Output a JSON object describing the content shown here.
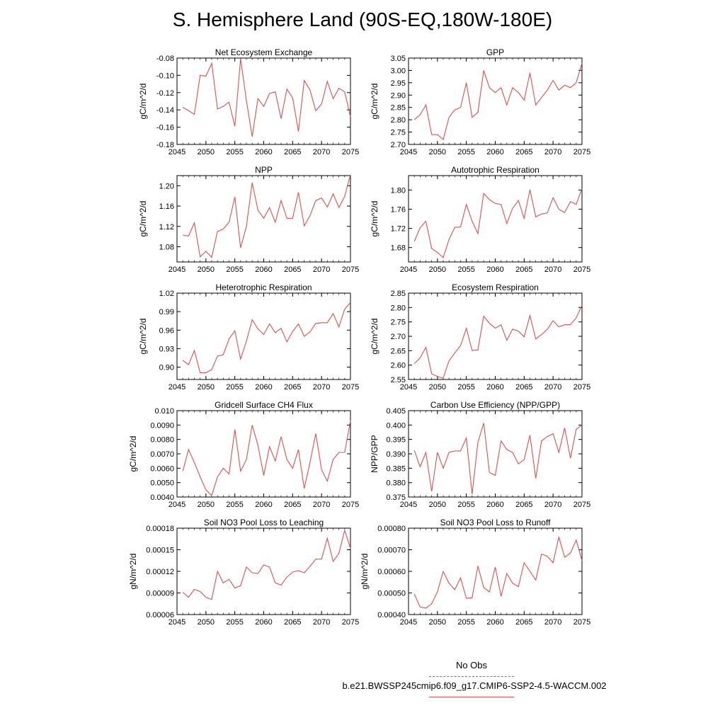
{
  "title": "S. Hemisphere Land (90S-EQ,180W-180E)",
  "legend": {
    "obs_label": "No Obs",
    "model_label": "b.e21.BWSSP245cmip6.f09_g17.CMIP6-SSP2-4.5-WACCM.002",
    "obs_color": "#6a6ad0",
    "model_color": "#e05050"
  },
  "chart_data": [
    {
      "type": "line",
      "title": "Net Ecosystem Exchange",
      "xlabel": "",
      "ylabel": "gC/m^2/d",
      "xlim": [
        2045,
        2075
      ],
      "ylim": [
        -0.18,
        -0.08
      ],
      "xticks": [
        2045,
        2050,
        2055,
        2060,
        2065,
        2070,
        2075
      ],
      "yticks": [
        -0.18,
        -0.16,
        -0.14,
        -0.12,
        -0.1,
        -0.08
      ],
      "ytick_labels": [
        "-0.18",
        "-0.16",
        "-0.14",
        "-0.12",
        "-0.10",
        "-0.08"
      ],
      "x": [
        2046,
        2047,
        2048,
        2049,
        2050,
        2051,
        2052,
        2053,
        2054,
        2055,
        2056,
        2057,
        2058,
        2059,
        2060,
        2061,
        2062,
        2063,
        2064,
        2065,
        2066,
        2067,
        2068,
        2069,
        2070,
        2071,
        2072,
        2073,
        2074,
        2075
      ],
      "series": [
        {
          "values": [
            -0.137,
            -0.141,
            -0.145,
            -0.1,
            -0.101,
            -0.086,
            -0.139,
            -0.136,
            -0.131,
            -0.159,
            -0.081,
            -0.129,
            -0.171,
            -0.127,
            -0.136,
            -0.121,
            -0.119,
            -0.15,
            -0.116,
            -0.126,
            -0.165,
            -0.106,
            -0.117,
            -0.141,
            -0.133,
            -0.107,
            -0.127,
            -0.115,
            -0.119,
            -0.148
          ]
        }
      ]
    },
    {
      "type": "line",
      "title": "GPP",
      "xlabel": "",
      "ylabel": "gC/m^2/d",
      "xlim": [
        2045,
        2075
      ],
      "ylim": [
        2.7,
        3.05
      ],
      "xticks": [
        2045,
        2050,
        2055,
        2060,
        2065,
        2070,
        2075
      ],
      "yticks": [
        2.7,
        2.75,
        2.8,
        2.85,
        2.9,
        2.95,
        3.0,
        3.05
      ],
      "ytick_labels": [
        "2.70",
        "2.75",
        "2.80",
        "2.85",
        "2.90",
        "2.95",
        "3.00",
        "3.05"
      ],
      "x": [
        2046,
        2047,
        2048,
        2049,
        2050,
        2051,
        2052,
        2053,
        2054,
        2055,
        2056,
        2057,
        2058,
        2059,
        2060,
        2061,
        2062,
        2063,
        2064,
        2065,
        2066,
        2067,
        2068,
        2069,
        2070,
        2071,
        2072,
        2073,
        2074,
        2075
      ],
      "series": [
        {
          "values": [
            2.8,
            2.82,
            2.86,
            2.74,
            2.74,
            2.72,
            2.81,
            2.84,
            2.85,
            2.95,
            2.81,
            2.83,
            3.0,
            2.93,
            2.91,
            2.93,
            2.86,
            2.93,
            2.91,
            2.88,
            2.99,
            2.86,
            2.89,
            2.92,
            2.96,
            2.92,
            2.94,
            2.93,
            2.95,
            3.03
          ]
        }
      ]
    },
    {
      "type": "line",
      "title": "NPP",
      "xlabel": "",
      "ylabel": "gC/m^2/d",
      "xlim": [
        2045,
        2075
      ],
      "ylim": [
        1.05,
        1.22
      ],
      "xticks": [
        2045,
        2050,
        2055,
        2060,
        2065,
        2070,
        2075
      ],
      "yticks": [
        1.08,
        1.12,
        1.16,
        1.2
      ],
      "ytick_labels": [
        "1.08",
        "1.12",
        "1.16",
        "1.20"
      ],
      "x": [
        2046,
        2047,
        2048,
        2049,
        2050,
        2051,
        2052,
        2053,
        2054,
        2055,
        2056,
        2057,
        2058,
        2059,
        2060,
        2061,
        2062,
        2063,
        2064,
        2065,
        2066,
        2067,
        2068,
        2069,
        2070,
        2071,
        2072,
        2073,
        2074,
        2075
      ],
      "series": [
        {
          "values": [
            1.103,
            1.101,
            1.127,
            1.06,
            1.071,
            1.059,
            1.11,
            1.115,
            1.128,
            1.178,
            1.078,
            1.12,
            1.206,
            1.152,
            1.136,
            1.157,
            1.128,
            1.171,
            1.136,
            1.136,
            1.187,
            1.121,
            1.141,
            1.171,
            1.176,
            1.158,
            1.184,
            1.157,
            1.179,
            1.222
          ]
        }
      ]
    },
    {
      "type": "line",
      "title": "Autotrophic Respiration",
      "xlabel": "",
      "ylabel": "gC/m^2/d",
      "xlim": [
        2045,
        2075
      ],
      "ylim": [
        1.65,
        1.83
      ],
      "xticks": [
        2045,
        2050,
        2055,
        2060,
        2065,
        2070,
        2075
      ],
      "yticks": [
        1.68,
        1.72,
        1.76,
        1.8
      ],
      "ytick_labels": [
        "1.68",
        "1.72",
        "1.76",
        "1.80"
      ],
      "x": [
        2046,
        2047,
        2048,
        2049,
        2050,
        2051,
        2052,
        2053,
        2054,
        2055,
        2056,
        2057,
        2058,
        2059,
        2060,
        2061,
        2062,
        2063,
        2064,
        2065,
        2066,
        2067,
        2068,
        2069,
        2070,
        2071,
        2072,
        2073,
        2074,
        2075
      ],
      "series": [
        {
          "values": [
            1.693,
            1.721,
            1.735,
            1.678,
            1.67,
            1.659,
            1.697,
            1.722,
            1.723,
            1.77,
            1.735,
            1.709,
            1.793,
            1.78,
            1.772,
            1.77,
            1.73,
            1.762,
            1.778,
            1.741,
            1.801,
            1.744,
            1.75,
            1.752,
            1.784,
            1.76,
            1.753,
            1.776,
            1.77,
            1.803
          ]
        }
      ]
    },
    {
      "type": "line",
      "title": "Heterotrophic Respiration",
      "xlabel": "",
      "ylabel": "gC/m^2/d",
      "xlim": [
        2045,
        2075
      ],
      "ylim": [
        0.88,
        1.02
      ],
      "xticks": [
        2045,
        2050,
        2055,
        2060,
        2065,
        2070,
        2075
      ],
      "yticks": [
        0.9,
        0.93,
        0.96,
        0.99,
        1.02
      ],
      "ytick_labels": [
        "0.90",
        "0.93",
        "0.96",
        "0.99",
        "1.02"
      ],
      "x": [
        2046,
        2047,
        2048,
        2049,
        2050,
        2051,
        2052,
        2053,
        2054,
        2055,
        2056,
        2057,
        2058,
        2059,
        2060,
        2061,
        2062,
        2063,
        2064,
        2065,
        2066,
        2067,
        2068,
        2069,
        2070,
        2071,
        2072,
        2073,
        2074,
        2075
      ],
      "series": [
        {
          "values": [
            0.911,
            0.904,
            0.927,
            0.891,
            0.891,
            0.896,
            0.918,
            0.92,
            0.946,
            0.959,
            0.913,
            0.942,
            0.977,
            0.962,
            0.953,
            0.97,
            0.956,
            0.963,
            0.941,
            0.958,
            0.97,
            0.95,
            0.957,
            0.971,
            0.972,
            0.972,
            0.987,
            0.965,
            0.994,
            1.005
          ]
        }
      ]
    },
    {
      "type": "line",
      "title": "Ecosystem Respiration",
      "xlabel": "",
      "ylabel": "gC/m^2/d",
      "xlim": [
        2045,
        2075
      ],
      "ylim": [
        2.55,
        2.85
      ],
      "xticks": [
        2045,
        2050,
        2055,
        2060,
        2065,
        2070,
        2075
      ],
      "yticks": [
        2.55,
        2.6,
        2.65,
        2.7,
        2.75,
        2.8,
        2.85
      ],
      "ytick_labels": [
        "2.55",
        "2.60",
        "2.65",
        "2.70",
        "2.75",
        "2.80",
        "2.85"
      ],
      "x": [
        2046,
        2047,
        2048,
        2049,
        2050,
        2051,
        2052,
        2053,
        2054,
        2055,
        2056,
        2057,
        2058,
        2059,
        2060,
        2061,
        2062,
        2063,
        2064,
        2065,
        2066,
        2067,
        2068,
        2069,
        2070,
        2071,
        2072,
        2073,
        2074,
        2075
      ],
      "series": [
        {
          "values": [
            2.605,
            2.625,
            2.662,
            2.57,
            2.56,
            2.555,
            2.615,
            2.642,
            2.668,
            2.728,
            2.65,
            2.653,
            2.77,
            2.745,
            2.728,
            2.74,
            2.686,
            2.725,
            2.718,
            2.698,
            2.772,
            2.691,
            2.706,
            2.724,
            2.754,
            2.733,
            2.74,
            2.741,
            2.764,
            2.808
          ]
        }
      ]
    },
    {
      "type": "line",
      "title": "Gridcell Surface CH4 Flux",
      "xlabel": "",
      "ylabel": "gC/m^2/d",
      "xlim": [
        2045,
        2075
      ],
      "ylim": [
        0.004,
        0.01
      ],
      "xticks": [
        2045,
        2050,
        2055,
        2060,
        2065,
        2070,
        2075
      ],
      "yticks": [
        0.004,
        0.005,
        0.006,
        0.007,
        0.008,
        0.009,
        0.01
      ],
      "ytick_labels": [
        "0.0040",
        "0.0050",
        "0.0060",
        "0.0070",
        "0.0080",
        "0.0090",
        "0.010"
      ],
      "x": [
        2046,
        2047,
        2048,
        2049,
        2050,
        2051,
        2052,
        2053,
        2054,
        2055,
        2056,
        2057,
        2058,
        2059,
        2060,
        2061,
        2062,
        2063,
        2064,
        2065,
        2066,
        2067,
        2068,
        2069,
        2070,
        2071,
        2072,
        2073,
        2074,
        2075
      ],
      "series": [
        {
          "values": [
            0.0058,
            0.0073,
            0.0064,
            0.0054,
            0.0045,
            0.0041,
            0.0054,
            0.006,
            0.0056,
            0.0087,
            0.0058,
            0.0066,
            0.009,
            0.0076,
            0.0055,
            0.0075,
            0.0065,
            0.0082,
            0.0066,
            0.006,
            0.0073,
            0.0046,
            0.0064,
            0.0084,
            0.0059,
            0.0051,
            0.0066,
            0.0071,
            0.0071,
            0.0093
          ]
        }
      ]
    },
    {
      "type": "line",
      "title": "Carbon Use Efficiency (NPP/GPP)",
      "xlabel": "",
      "ylabel": "NPP/GPP",
      "xlim": [
        2045,
        2075
      ],
      "ylim": [
        0.375,
        0.405
      ],
      "xticks": [
        2045,
        2050,
        2055,
        2060,
        2065,
        2070,
        2075
      ],
      "yticks": [
        0.375,
        0.38,
        0.385,
        0.39,
        0.395,
        0.4,
        0.405
      ],
      "ytick_labels": [
        "0.375",
        "0.380",
        "0.385",
        "0.390",
        "0.395",
        "0.400",
        "0.405"
      ],
      "x": [
        2046,
        2047,
        2048,
        2049,
        2050,
        2051,
        2052,
        2053,
        2054,
        2055,
        2056,
        2057,
        2058,
        2059,
        2060,
        2061,
        2062,
        2063,
        2064,
        2065,
        2066,
        2067,
        2068,
        2069,
        2070,
        2071,
        2072,
        2073,
        2074,
        2075
      ],
      "series": [
        {
          "values": [
            0.3912,
            0.3855,
            0.3905,
            0.377,
            0.3905,
            0.385,
            0.3905,
            0.391,
            0.391,
            0.3955,
            0.376,
            0.394,
            0.4007,
            0.3835,
            0.3825,
            0.3945,
            0.3915,
            0.3905,
            0.3865,
            0.388,
            0.3965,
            0.3815,
            0.3945,
            0.396,
            0.397,
            0.3905,
            0.399,
            0.3885,
            0.3985,
            0.4
          ]
        }
      ]
    },
    {
      "type": "line",
      "title": "Soil NO3 Pool Loss to Leaching",
      "xlabel": "",
      "ylabel": "gN/m^2/d",
      "xlim": [
        2045,
        2075
      ],
      "ylim": [
        6e-05,
        0.00018
      ],
      "xticks": [
        2045,
        2050,
        2055,
        2060,
        2065,
        2070,
        2075
      ],
      "yticks": [
        6e-05,
        9e-05,
        0.00012,
        0.00015,
        0.00018
      ],
      "ytick_labels": [
        "0.00006",
        "0.00009",
        "0.00012",
        "0.00015",
        "0.00018"
      ],
      "x": [
        2046,
        2047,
        2048,
        2049,
        2050,
        2051,
        2052,
        2053,
        2054,
        2055,
        2056,
        2057,
        2058,
        2059,
        2060,
        2061,
        2062,
        2063,
        2064,
        2065,
        2066,
        2067,
        2068,
        2069,
        2070,
        2071,
        2072,
        2073,
        2074,
        2075
      ],
      "series": [
        {
          "values": [
            9.1e-05,
            8.4e-05,
            9.5e-05,
            9.2e-05,
            8.4e-05,
            8.1e-05,
            0.00012,
            0.000104,
            0.000109,
            9.7e-05,
            0.0001,
            0.000126,
            0.000118,
            0.000117,
            0.000129,
            0.000126,
            0.000104,
            0.000101,
            0.000112,
            0.000119,
            0.000121,
            0.000118,
            0.000127,
            0.000137,
            0.000137,
            0.000166,
            0.000134,
            0.000145,
            0.000177,
            0.000152
          ]
        }
      ]
    },
    {
      "type": "line",
      "title": "Soil NO3 Pool Loss to Runoff",
      "xlabel": "",
      "ylabel": "gN/m^2/d",
      "xlim": [
        2045,
        2075
      ],
      "ylim": [
        0.0004,
        0.0008
      ],
      "xticks": [
        2045,
        2050,
        2055,
        2060,
        2065,
        2070,
        2075
      ],
      "yticks": [
        0.0004,
        0.0005,
        0.0006,
        0.0007,
        0.0008
      ],
      "ytick_labels": [
        "0.00040",
        "0.00050",
        "0.00060",
        "0.00070",
        "0.00080"
      ],
      "x": [
        2046,
        2047,
        2048,
        2049,
        2050,
        2051,
        2052,
        2053,
        2054,
        2055,
        2056,
        2057,
        2058,
        2059,
        2060,
        2061,
        2062,
        2063,
        2064,
        2065,
        2066,
        2067,
        2068,
        2069,
        2070,
        2071,
        2072,
        2073,
        2074,
        2075
      ],
      "series": [
        {
          "values": [
            0.000495,
            0.000435,
            0.00043,
            0.00045,
            0.000505,
            0.0006,
            0.000545,
            0.000515,
            0.00057,
            0.000475,
            0.000478,
            0.000625,
            0.000525,
            0.000505,
            0.00062,
            0.000485,
            0.00059,
            0.000545,
            0.00053,
            0.00064,
            0.0006,
            0.00056,
            0.00068,
            0.00067,
            0.00064,
            0.00076,
            0.000665,
            0.000685,
            0.000745,
            0.00065
          ]
        }
      ]
    }
  ]
}
